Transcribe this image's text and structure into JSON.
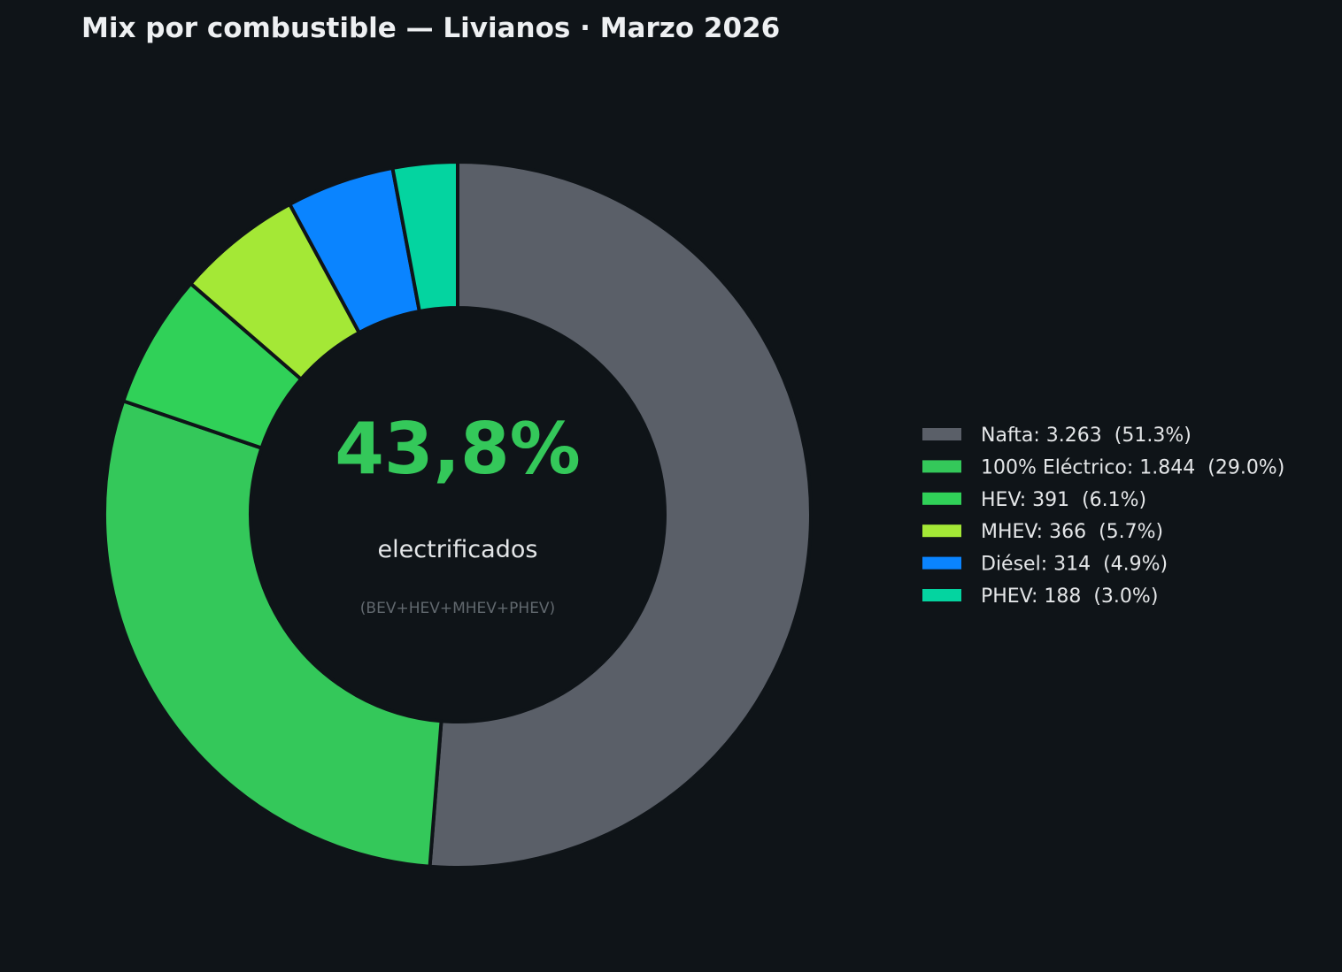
{
  "chart_data": {
    "type": "pie",
    "title": "Mix por combustible — Livianos · Marzo 2026",
    "donut": true,
    "slices": [
      {
        "label": "Nafta",
        "value": 3263,
        "percent": 51.3,
        "color": "#5a5f68",
        "legend": "Nafta: 3.263  (51.3%)"
      },
      {
        "label": "100% Eléctrico",
        "value": 1844,
        "percent": 29.0,
        "color": "#34c85a",
        "legend": "100% Eléctrico: 1.844  (29.0%)"
      },
      {
        "label": "HEV",
        "value": 391,
        "percent": 6.1,
        "color": "#30d158",
        "legend": "HEV: 391  (6.1%)"
      },
      {
        "label": "MHEV",
        "value": 366,
        "percent": 5.7,
        "color": "#a4e836",
        "legend": "MHEV: 366  (5.7%)"
      },
      {
        "label": "Diésel",
        "value": 314,
        "percent": 4.9,
        "color": "#0a84ff",
        "legend": "Diésel: 314  (4.9%)"
      },
      {
        "label": "PHEV",
        "value": 188,
        "percent": 3.0,
        "color": "#04d4a0",
        "legend": "PHEV: 188  (3.0%)"
      }
    ],
    "legend_position": "right",
    "center": {
      "value": "43,8%",
      "label": "electrificados",
      "note": "(BEV+HEV+MHEV+PHEV)",
      "color": "#34c85a"
    }
  },
  "theme": {
    "background": "#0f1418",
    "separator": "#0f1418"
  }
}
